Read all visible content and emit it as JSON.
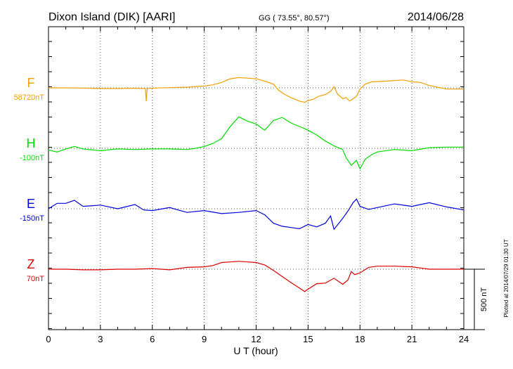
{
  "header": {
    "station": "Dixon Island (DIK)  [AARI]",
    "coords": "GG ( 73.55°,  80.57°)",
    "date": "2014/06/28"
  },
  "footer": {
    "xlabel": "U T (hour)",
    "plotted": "Plotted at 2014/07/29 01:30 UT",
    "scale_label": "500 nT"
  },
  "chart_data": {
    "type": "line",
    "title": "Dixon Island (DIK)  [AARI]",
    "xlabel": "U T (hour)",
    "xlim": [
      0,
      24
    ],
    "xticks": [
      0,
      3,
      6,
      9,
      12,
      15,
      18,
      21,
      24
    ],
    "grid": true,
    "scale_bar_nT": 500,
    "series": [
      {
        "name": "F",
        "baseline_label": "58720nT",
        "color": "#f0a000",
        "baseline_nT": 0,
        "points": [
          [
            0,
            0
          ],
          [
            1,
            0
          ],
          [
            2,
            -2
          ],
          [
            3,
            -5
          ],
          [
            4,
            -5
          ],
          [
            5,
            -3
          ],
          [
            5.6,
            -5
          ],
          [
            5.65,
            -110
          ],
          [
            5.7,
            -5
          ],
          [
            6,
            -2
          ],
          [
            7,
            2
          ],
          [
            8,
            5
          ],
          [
            9,
            15
          ],
          [
            9.5,
            25
          ],
          [
            10,
            45
          ],
          [
            10.5,
            75
          ],
          [
            11,
            85
          ],
          [
            11.5,
            80
          ],
          [
            12,
            75
          ],
          [
            12.5,
            55
          ],
          [
            13,
            30
          ],
          [
            13.3,
            -20
          ],
          [
            13.6,
            -50
          ],
          [
            14,
            -80
          ],
          [
            14.5,
            -110
          ],
          [
            14.8,
            -120
          ],
          [
            15,
            -105
          ],
          [
            15.3,
            -95
          ],
          [
            15.6,
            -70
          ],
          [
            16,
            -55
          ],
          [
            16.3,
            -30
          ],
          [
            16.5,
            10
          ],
          [
            16.7,
            -50
          ],
          [
            17,
            -90
          ],
          [
            17.2,
            -80
          ],
          [
            17.4,
            -110
          ],
          [
            17.6,
            -90
          ],
          [
            17.8,
            -70
          ],
          [
            18,
            -10
          ],
          [
            18.3,
            30
          ],
          [
            18.7,
            50
          ],
          [
            19.5,
            55
          ],
          [
            20.5,
            65
          ],
          [
            21,
            50
          ],
          [
            21.5,
            45
          ],
          [
            22,
            20
          ],
          [
            23,
            -10
          ],
          [
            24,
            -10
          ]
        ]
      },
      {
        "name": "H",
        "baseline_label": "-100nT",
        "color": "#00dd00",
        "baseline_nT": 0,
        "points": [
          [
            0,
            -15
          ],
          [
            0.5,
            -30
          ],
          [
            1,
            -5
          ],
          [
            1.5,
            15
          ],
          [
            2,
            -5
          ],
          [
            3,
            -20
          ],
          [
            4,
            -5
          ],
          [
            5,
            -10
          ],
          [
            6,
            -5
          ],
          [
            7,
            -5
          ],
          [
            8,
            -10
          ],
          [
            8.5,
            0
          ],
          [
            9,
            15
          ],
          [
            9.5,
            40
          ],
          [
            10,
            80
          ],
          [
            10.5,
            180
          ],
          [
            11,
            260
          ],
          [
            11.5,
            225
          ],
          [
            12,
            200
          ],
          [
            12.5,
            150
          ],
          [
            13,
            230
          ],
          [
            13.5,
            255
          ],
          [
            14,
            210
          ],
          [
            14.5,
            180
          ],
          [
            15,
            150
          ],
          [
            15.5,
            110
          ],
          [
            16,
            60
          ],
          [
            16.5,
            20
          ],
          [
            17,
            -10
          ],
          [
            17.2,
            -80
          ],
          [
            17.5,
            -140
          ],
          [
            17.8,
            -100
          ],
          [
            18,
            -170
          ],
          [
            18.3,
            -90
          ],
          [
            18.7,
            -50
          ],
          [
            19,
            -30
          ],
          [
            20,
            -10
          ],
          [
            21,
            -20
          ],
          [
            22,
            5
          ],
          [
            23,
            10
          ],
          [
            24,
            10
          ]
        ]
      },
      {
        "name": "E",
        "baseline_label": "-150nT",
        "color": "#0000dd",
        "baseline_nT": 0,
        "points": [
          [
            0,
            0
          ],
          [
            0.5,
            45
          ],
          [
            1,
            45
          ],
          [
            1.5,
            70
          ],
          [
            2,
            20
          ],
          [
            3,
            30
          ],
          [
            4,
            0
          ],
          [
            5,
            35
          ],
          [
            5.5,
            -10
          ],
          [
            6,
            -15
          ],
          [
            7,
            10
          ],
          [
            8,
            -30
          ],
          [
            9,
            -15
          ],
          [
            10,
            -40
          ],
          [
            11,
            -30
          ],
          [
            12,
            -15
          ],
          [
            12.5,
            -50
          ],
          [
            13,
            -120
          ],
          [
            13.5,
            -145
          ],
          [
            14,
            -155
          ],
          [
            14.5,
            -165
          ],
          [
            15,
            -130
          ],
          [
            15.5,
            -150
          ],
          [
            16,
            -120
          ],
          [
            16.3,
            -60
          ],
          [
            16.5,
            -170
          ],
          [
            17,
            -80
          ],
          [
            17.3,
            -20
          ],
          [
            17.6,
            50
          ],
          [
            17.8,
            80
          ],
          [
            18,
            20
          ],
          [
            18.5,
            -5
          ],
          [
            19,
            10
          ],
          [
            20,
            40
          ],
          [
            21,
            20
          ],
          [
            22,
            50
          ],
          [
            23,
            15
          ],
          [
            24,
            -10
          ]
        ]
      },
      {
        "name": "Z",
        "baseline_label": "70nT",
        "color": "#dd0000",
        "baseline_nT": 0,
        "points": [
          [
            0,
            0
          ],
          [
            1,
            0
          ],
          [
            2,
            -5
          ],
          [
            3,
            -5
          ],
          [
            4,
            0
          ],
          [
            5,
            0
          ],
          [
            6,
            5
          ],
          [
            7,
            -5
          ],
          [
            8,
            15
          ],
          [
            9,
            20
          ],
          [
            9.5,
            30
          ],
          [
            10,
            55
          ],
          [
            11,
            65
          ],
          [
            12,
            55
          ],
          [
            12.5,
            35
          ],
          [
            13,
            -10
          ],
          [
            13.5,
            -60
          ],
          [
            14,
            -110
          ],
          [
            14.5,
            -155
          ],
          [
            14.8,
            -185
          ],
          [
            15,
            -165
          ],
          [
            15.5,
            -120
          ],
          [
            16,
            -115
          ],
          [
            16.5,
            -75
          ],
          [
            17,
            -125
          ],
          [
            17.3,
            -90
          ],
          [
            17.5,
            -20
          ],
          [
            17.7,
            -45
          ],
          [
            18,
            -30
          ],
          [
            18.5,
            15
          ],
          [
            19,
            25
          ],
          [
            20,
            25
          ],
          [
            21,
            20
          ],
          [
            22,
            0
          ],
          [
            23,
            0
          ],
          [
            24,
            0
          ]
        ]
      }
    ]
  }
}
